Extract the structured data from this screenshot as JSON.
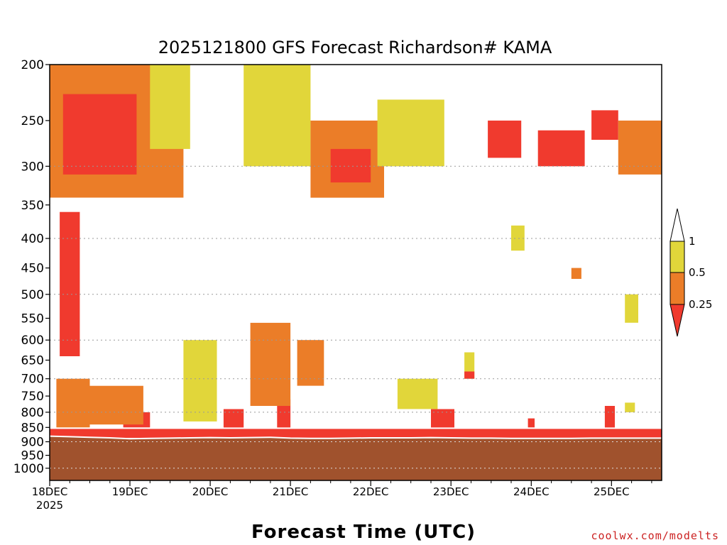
{
  "chart_data": {
    "type": "heatmap",
    "title": "2025121800 GFS Forecast Richardson# KAMA",
    "xlabel": "Forecast Time (UTC)",
    "x_ticks": [
      {
        "label": "18DEC",
        "sub": "2025",
        "hour": 0
      },
      {
        "label": "19DEC",
        "hour": 24
      },
      {
        "label": "20DEC",
        "hour": 48
      },
      {
        "label": "21DEC",
        "hour": 72
      },
      {
        "label": "22DEC",
        "hour": 96
      },
      {
        "label": "23DEC",
        "hour": 120
      },
      {
        "label": "24DEC",
        "hour": 144
      },
      {
        "label": "25DEC",
        "hour": 168
      }
    ],
    "xlim": [
      0,
      183
    ],
    "ylim": [
      1050,
      200
    ],
    "y_scale": "log",
    "y_ticks": [
      "200",
      "250",
      "300",
      "350",
      "400",
      "450",
      "500",
      "550",
      "600",
      "650",
      "700",
      "750",
      "800",
      "850",
      "900",
      "950",
      "1000"
    ],
    "grid_levels": [
      300,
      400,
      500,
      600,
      700,
      800,
      900,
      1000
    ],
    "legend": [
      {
        "label": "1",
        "value": 1
      },
      {
        "label": "0.5",
        "value": 0.5
      },
      {
        "label": "0.25",
        "value": 0.25
      }
    ],
    "colors": {
      "below_0_25": "#f03a2e",
      "from_0_25_to_0_5": "#eb7d28",
      "from_0_5_to_1": "#e1d63a",
      "above_1": "#ffffff",
      "ground": "#a0522d"
    },
    "surface_pressure": [
      {
        "hour": 0,
        "p": 880
      },
      {
        "hour": 6,
        "p": 882
      },
      {
        "hour": 12,
        "p": 884
      },
      {
        "hour": 18,
        "p": 886
      },
      {
        "hour": 24,
        "p": 889
      },
      {
        "hour": 30,
        "p": 888
      },
      {
        "hour": 36,
        "p": 887
      },
      {
        "hour": 42,
        "p": 886
      },
      {
        "hour": 48,
        "p": 885
      },
      {
        "hour": 54,
        "p": 886
      },
      {
        "hour": 60,
        "p": 885
      },
      {
        "hour": 66,
        "p": 884
      },
      {
        "hour": 72,
        "p": 887
      },
      {
        "hour": 78,
        "p": 888
      },
      {
        "hour": 84,
        "p": 888
      },
      {
        "hour": 90,
        "p": 887
      },
      {
        "hour": 96,
        "p": 886
      },
      {
        "hour": 102,
        "p": 886
      },
      {
        "hour": 108,
        "p": 886
      },
      {
        "hour": 114,
        "p": 885
      },
      {
        "hour": 120,
        "p": 886
      },
      {
        "hour": 126,
        "p": 887
      },
      {
        "hour": 132,
        "p": 887
      },
      {
        "hour": 138,
        "p": 888
      },
      {
        "hour": 144,
        "p": 888
      },
      {
        "hour": 150,
        "p": 888
      },
      {
        "hour": 156,
        "p": 888
      },
      {
        "hour": 162,
        "p": 887
      },
      {
        "hour": 168,
        "p": 887
      },
      {
        "hour": 174,
        "p": 887
      },
      {
        "hour": 183,
        "p": 887
      }
    ],
    "bands": [
      {
        "start_hour": 0,
        "end_hour": 183,
        "bottom_p": 886,
        "top_p": 855,
        "category": "below_0_25"
      },
      {
        "start_hour": 22,
        "end_hour": 30,
        "bottom_p": 850,
        "top_p": 800,
        "category": "below_0_25"
      },
      {
        "start_hour": 52,
        "end_hour": 58,
        "bottom_p": 850,
        "top_p": 790,
        "category": "below_0_25"
      },
      {
        "start_hour": 68,
        "end_hour": 72,
        "bottom_p": 850,
        "top_p": 760,
        "category": "below_0_25"
      },
      {
        "start_hour": 114,
        "end_hour": 121,
        "bottom_p": 850,
        "top_p": 790,
        "category": "below_0_25"
      },
      {
        "start_hour": 143,
        "end_hour": 145,
        "bottom_p": 850,
        "top_p": 820,
        "category": "below_0_25"
      },
      {
        "start_hour": 166,
        "end_hour": 169,
        "bottom_p": 850,
        "top_p": 780,
        "category": "below_0_25"
      },
      {
        "start_hour": 2,
        "end_hour": 12,
        "bottom_p": 850,
        "top_p": 700,
        "category": "from_0_25_to_0_5"
      },
      {
        "start_hour": 12,
        "end_hour": 28,
        "bottom_p": 840,
        "top_p": 720,
        "category": "from_0_25_to_0_5"
      },
      {
        "start_hour": 60,
        "end_hour": 72,
        "bottom_p": 780,
        "top_p": 560,
        "category": "from_0_25_to_0_5"
      },
      {
        "start_hour": 74,
        "end_hour": 82,
        "bottom_p": 720,
        "top_p": 600,
        "category": "from_0_25_to_0_5"
      },
      {
        "start_hour": 3,
        "end_hour": 9,
        "bottom_p": 640,
        "top_p": 360,
        "category": "below_0_25"
      },
      {
        "start_hour": 40,
        "end_hour": 50,
        "bottom_p": 830,
        "top_p": 600,
        "category": "from_0_5_to_1"
      },
      {
        "start_hour": 104,
        "end_hour": 116,
        "bottom_p": 790,
        "top_p": 700,
        "category": "from_0_5_to_1"
      },
      {
        "start_hour": 124,
        "end_hour": 127,
        "bottom_p": 700,
        "top_p": 630,
        "category": "from_0_5_to_1"
      },
      {
        "start_hour": 0,
        "end_hour": 40,
        "bottom_p": 340,
        "top_p": 200,
        "category": "from_0_25_to_0_5"
      },
      {
        "start_hour": 4,
        "end_hour": 26,
        "bottom_p": 310,
        "top_p": 225,
        "category": "below_0_25"
      },
      {
        "start_hour": 30,
        "end_hour": 42,
        "bottom_p": 280,
        "top_p": 200,
        "category": "from_0_5_to_1"
      },
      {
        "start_hour": 58,
        "end_hour": 78,
        "bottom_p": 300,
        "top_p": 200,
        "category": "from_0_5_to_1"
      },
      {
        "start_hour": 78,
        "end_hour": 100,
        "bottom_p": 340,
        "top_p": 250,
        "category": "from_0_25_to_0_5"
      },
      {
        "start_hour": 84,
        "end_hour": 96,
        "bottom_p": 320,
        "top_p": 280,
        "category": "below_0_25"
      },
      {
        "start_hour": 98,
        "end_hour": 118,
        "bottom_p": 300,
        "top_p": 230,
        "category": "from_0_5_to_1"
      },
      {
        "start_hour": 131,
        "end_hour": 141,
        "bottom_p": 290,
        "top_p": 250,
        "category": "below_0_25"
      },
      {
        "start_hour": 146,
        "end_hour": 160,
        "bottom_p": 300,
        "top_p": 260,
        "category": "below_0_25"
      },
      {
        "start_hour": 162,
        "end_hour": 170,
        "bottom_p": 270,
        "top_p": 240,
        "category": "below_0_25"
      },
      {
        "start_hour": 170,
        "end_hour": 183,
        "bottom_p": 310,
        "top_p": 250,
        "category": "from_0_25_to_0_5"
      },
      {
        "start_hour": 138,
        "end_hour": 142,
        "bottom_p": 420,
        "top_p": 380,
        "category": "from_0_5_to_1"
      },
      {
        "start_hour": 156,
        "end_hour": 159,
        "bottom_p": 470,
        "top_p": 450,
        "category": "from_0_25_to_0_5"
      },
      {
        "start_hour": 172,
        "end_hour": 176,
        "bottom_p": 560,
        "top_p": 500,
        "category": "from_0_5_to_1"
      },
      {
        "start_hour": 124,
        "end_hour": 127,
        "bottom_p": 700,
        "top_p": 680,
        "category": "below_0_25"
      },
      {
        "start_hour": 172,
        "end_hour": 175,
        "bottom_p": 800,
        "top_p": 770,
        "category": "from_0_5_to_1"
      }
    ]
  },
  "credit": "coolwx.com/modelts"
}
